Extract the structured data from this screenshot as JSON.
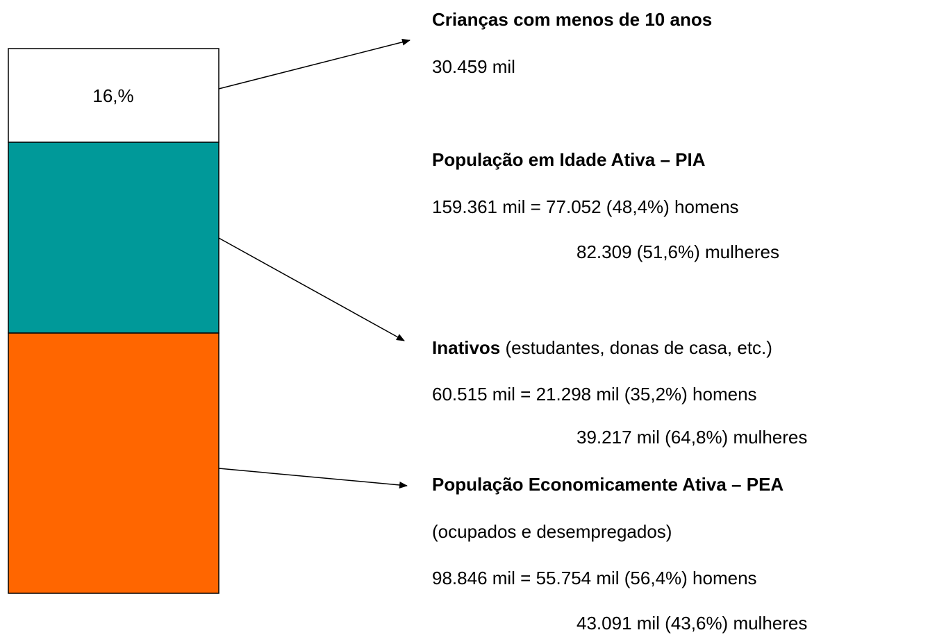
{
  "bar": {
    "label": "16,%"
  },
  "blocks": [
    {
      "title": "Crianças com menos de 10 anos",
      "lines": [
        "30.459 mil"
      ]
    },
    {
      "title": "População em Idade Ativa – PIA",
      "lines": [
        "159.361 mil = 77.052 (48,4%) homens",
        "82.309 (51,6%) mulheres"
      ]
    },
    {
      "title": "Inativos",
      "title_note": " (estudantes, donas de casa, etc.)",
      "lines": [
        "60.515 mil = 21.298 mil (35,2%) homens",
        "39.217 mil (64,8%) mulheres"
      ]
    },
    {
      "title": "População Economicamente Ativa – PEA",
      "lines": [
        "(ocupados e desempregados)",
        "98.846 mil = 55.754 mil (56,4%) homens",
        "43.091 mil (43,6%) mulheres"
      ]
    }
  ]
}
